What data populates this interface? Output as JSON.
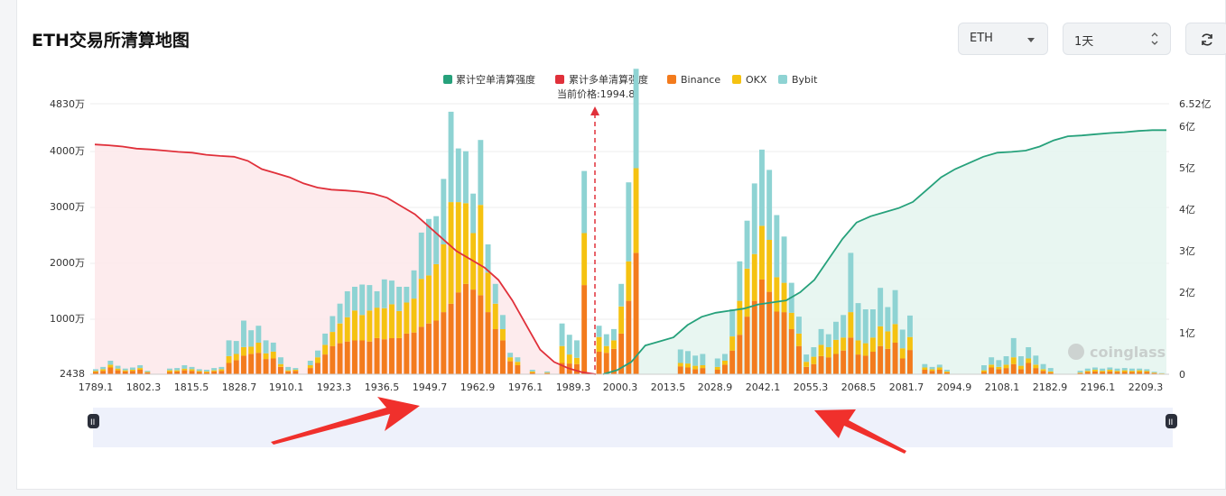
{
  "header": {
    "title": "ETH交易所清算地图",
    "symbol_select": "ETH",
    "range_select": "1天"
  },
  "colors": {
    "short_cum": "#26a17b",
    "long_cum": "#e0303a",
    "binance": "#f37b1d",
    "okx": "#f5c211",
    "bybit": "#8ed3d3",
    "long_fill": "#fde8ea",
    "short_fill": "#e4f5ef"
  },
  "icons": [
    "chevron-down-icon",
    "up-down-icon",
    "refresh-icon",
    "drag-handle-icon",
    "coinglass-logo-icon"
  ],
  "watermark": "coinglass",
  "chart_data": {
    "type": "bar",
    "legend": [
      "累计空单清算强度",
      "累计多单清算强度",
      "Binance",
      "OKX",
      "Bybit"
    ],
    "current_price_label": "当前价格:1994.8",
    "current_price": 1994.8,
    "x_tick_labels": [
      "1789.1",
      "1802.3",
      "1815.5",
      "1828.7",
      "1910.1",
      "1923.3",
      "1936.5",
      "1949.7",
      "1962.9",
      "1976.1",
      "1989.3",
      "2000.3",
      "2013.5",
      "2028.9",
      "2042.1",
      "2055.3",
      "2068.5",
      "2081.7",
      "2094.9",
      "2108.1",
      "2182.9",
      "2196.1",
      "2209.3"
    ],
    "y_left_ticks": [
      "2438",
      "1000万",
      "2000万",
      "3000万",
      "4000万",
      "4830万"
    ],
    "y_right_ticks": [
      "0",
      "1亿",
      "2亿",
      "3亿",
      "4亿",
      "5亿",
      "6亿",
      "6.52亿"
    ],
    "y_left_range": [
      2438,
      48300000
    ],
    "y_right_range": [
      0,
      652000000
    ],
    "bar_stack_values_wan": {
      "binance": [
        40,
        60,
        120,
        70,
        50,
        60,
        80,
        30,
        0,
        0,
        40,
        50,
        70,
        60,
        40,
        30,
        50,
        60,
        200,
        250,
        330,
        360,
        380,
        270,
        280,
        130,
        50,
        60,
        0,
        110,
        200,
        350,
        500,
        550,
        580,
        600,
        600,
        580,
        640,
        620,
        640,
        640,
        720,
        740,
        840,
        900,
        950,
        1100,
        1250,
        1450,
        1600,
        1500,
        1400,
        1100,
        800,
        600,
        230,
        160,
        0,
        30,
        0,
        20,
        0,
        200,
        190,
        180,
        1580,
        0,
        400,
        380,
        450,
        720,
        1300,
        2150,
        0,
        0,
        0,
        0,
        0,
        140,
        120,
        90,
        110,
        0,
        80,
        170,
        420,
        700,
        1020,
        1300,
        1680,
        1460,
        1110,
        1100,
        800,
        500,
        130,
        180,
        320,
        300,
        360,
        420,
        650,
        350,
        330,
        400,
        500,
        450,
        560,
        280,
        430,
        0,
        80,
        60,
        80,
        30,
        0,
        0,
        0,
        0,
        40,
        120,
        90,
        110,
        180,
        90,
        200,
        110,
        60,
        30,
        0,
        0,
        0,
        20,
        40,
        50,
        40,
        50,
        40,
        40,
        40,
        40,
        40,
        20,
        10
      ],
      "okx": [
        20,
        30,
        50,
        30,
        20,
        20,
        30,
        10,
        0,
        0,
        30,
        20,
        30,
        30,
        20,
        20,
        20,
        30,
        120,
        110,
        150,
        130,
        180,
        100,
        120,
        50,
        20,
        20,
        0,
        50,
        100,
        170,
        250,
        350,
        430,
        530,
        450,
        550,
        540,
        550,
        600,
        480,
        550,
        600,
        850,
        850,
        1000,
        1200,
        1800,
        1600,
        1430,
        1000,
        1600,
        700,
        450,
        200,
        70,
        60,
        0,
        20,
        0,
        10,
        0,
        300,
        160,
        110,
        920,
        0,
        260,
        120,
        150,
        480,
        700,
        1500,
        0,
        0,
        0,
        0,
        0,
        60,
        70,
        60,
        50,
        0,
        50,
        70,
        250,
        600,
        850,
        830,
        950,
        920,
        610,
        520,
        290,
        220,
        90,
        130,
        200,
        180,
        250,
        230,
        450,
        250,
        220,
        250,
        350,
        310,
        330,
        180,
        230,
        0,
        40,
        30,
        40,
        20,
        0,
        0,
        0,
        0,
        30,
        50,
        40,
        60,
        120,
        60,
        80,
        60,
        30,
        20,
        0,
        0,
        0,
        10,
        20,
        30,
        20,
        30,
        20,
        30,
        20,
        30,
        20,
        10,
        5
      ],
      "bybit": [
        30,
        40,
        70,
        50,
        30,
        40,
        50,
        20,
        0,
        0,
        30,
        40,
        60,
        40,
        30,
        30,
        40,
        40,
        280,
        230,
        470,
        290,
        300,
        230,
        160,
        120,
        60,
        30,
        0,
        80,
        120,
        200,
        280,
        350,
        460,
        420,
        540,
        450,
        290,
        510,
        420,
        430,
        280,
        500,
        820,
        1000,
        850,
        1160,
        1600,
        950,
        920,
        700,
        1150,
        500,
        350,
        250,
        80,
        80,
        0,
        30,
        0,
        20,
        0,
        400,
        350,
        310,
        1100,
        0,
        200,
        210,
        200,
        400,
        1400,
        1760,
        0,
        0,
        0,
        0,
        0,
        240,
        220,
        180,
        200,
        0,
        150,
        120,
        480,
        700,
        850,
        1250,
        1350,
        1240,
        1100,
        820,
        530,
        300,
        130,
        170,
        280,
        230,
        320,
        400,
        1050,
        660,
        600,
        500,
        680,
        430,
        600,
        330,
        380,
        0,
        60,
        40,
        50,
        30,
        0,
        0,
        0,
        0,
        90,
        130,
        120,
        150,
        340,
        170,
        200,
        160,
        90,
        60,
        0,
        0,
        0,
        30,
        40,
        40,
        40,
        40,
        40,
        40,
        40,
        30,
        30,
        15,
        5
      ]
    },
    "cum_long_points_yi": [
      5.6,
      5.58,
      5.55,
      5.5,
      5.48,
      5.45,
      5.42,
      5.4,
      5.35,
      5.32,
      5.3,
      5.2,
      5.0,
      4.9,
      4.8,
      4.65,
      4.55,
      4.5,
      4.48,
      4.45,
      4.4,
      4.3,
      4.1,
      3.9,
      3.6,
      3.3,
      3.0,
      2.8,
      2.6,
      2.3,
      1.8,
      1.2,
      0.6,
      0.3,
      0.15,
      0.05,
      0
    ],
    "cum_short_points_yi": [
      0,
      0.1,
      0.3,
      0.7,
      0.8,
      0.9,
      1.2,
      1.4,
      1.5,
      1.55,
      1.6,
      1.7,
      1.75,
      1.8,
      2.0,
      2.3,
      2.8,
      3.3,
      3.7,
      3.85,
      3.95,
      4.05,
      4.2,
      4.5,
      4.8,
      5.0,
      5.15,
      5.3,
      5.4,
      5.42,
      5.45,
      5.55,
      5.7,
      5.8,
      5.82,
      5.85,
      5.88,
      5.9,
      5.93,
      5.95,
      5.95
    ]
  }
}
